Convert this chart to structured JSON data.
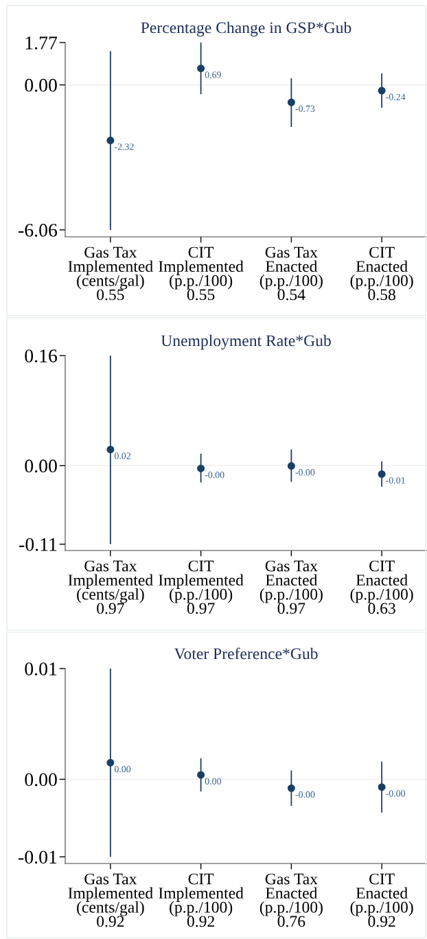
{
  "chart_data": [
    {
      "type": "scatter",
      "title": "Percentage Change in GSP*Gub",
      "categories": [
        "Gas Tax\nImplemented\n(cents/gal)\n0.55",
        "CIT\nImplemented\n(p.p./100)\n0.55",
        "Gas Tax\nEnacted\n(p.p./100)\n0.54",
        "CIT\nEnacted\n(p.p./100)\n0.58"
      ],
      "series": [
        {
          "color": "#1a3f66",
          "values": [
            -2.32,
            0.69,
            -0.73,
            -0.24
          ],
          "errors": [
            [
              -6.06,
              1.41
            ],
            [
              -0.39,
              1.77
            ],
            [
              -1.76,
              0.28
            ],
            [
              -0.96,
              0.48
            ]
          ],
          "value_labels": [
            "-2.32",
            "0.69",
            "-0.73",
            "-0.24"
          ]
        }
      ],
      "ylim": [
        -6.35,
        1.77
      ],
      "yticks": [
        -6.06,
        {
          "value": 0,
          "label": "0.00"
        },
        1.77
      ],
      "ref_lines": [
        {
          "axis": "y",
          "value": 0,
          "color": "#eeeeee"
        }
      ],
      "marker": "circle",
      "grid": false,
      "legend": false
    },
    {
      "type": "scatter",
      "title": "Unemployment Rate*Gub",
      "categories": [
        "Gas Tax\nImplemented\n(cents/gal)\n0.97",
        "CIT\nImplemented\n(p.p./100)\n0.97",
        "Gas Tax\nEnacted\n(p.p./100)\n0.97",
        "CIT\nEnacted\n(p.p./100)\n0.63"
      ],
      "series": [
        {
          "color": "#1a3f66",
          "values": [
            0.023,
            -0.004,
            -0.0004,
            -0.012
          ],
          "errors": [
            [
              -0.112,
              0.157
            ],
            [
              -0.024,
              0.017
            ],
            [
              -0.023,
              0.023
            ],
            [
              -0.03,
              0.006
            ]
          ],
          "value_labels": [
            "0.02",
            "-0.00",
            "-0.00",
            "-0.01"
          ]
        }
      ],
      "ylim": [
        -0.121,
        0.157
      ],
      "yticks": [
        {
          "value": -0.112,
          "label": "-0.11"
        },
        {
          "value": 0,
          "label": "0.00"
        },
        {
          "value": 0.157,
          "label": "0.16"
        }
      ],
      "ref_lines": [
        {
          "axis": "y",
          "value": 0,
          "color": "#eeeeee"
        }
      ],
      "marker": "circle",
      "grid": false,
      "legend": false
    },
    {
      "type": "scatter",
      "title": "Voter Preference*Gub",
      "categories": [
        "Gas Tax\nImplemented\n(cents/gal)\n0.92",
        "CIT\nImplemented\n(p.p./100)\n0.92",
        "Gas Tax\nEnacted\n(p.p./100)\n0.76",
        "CIT\nEnacted\n(p.p./100)\n0.92"
      ],
      "series": [
        {
          "color": "#1a3f66",
          "values": [
            0.0015,
            0.0004,
            -0.0008,
            -0.0007
          ],
          "errors": [
            [
              -0.007,
              0.01
            ],
            [
              -0.0011,
              0.0019
            ],
            [
              -0.0024,
              0.0008
            ],
            [
              -0.003,
              0.0016
            ]
          ],
          "value_labels": [
            "0.00",
            "0.00",
            "-0.00",
            "-0.00"
          ]
        }
      ],
      "ylim": [
        -0.0076,
        0.01
      ],
      "yticks": [
        {
          "value": -0.007,
          "label": "-0.01"
        },
        {
          "value": 0,
          "label": "0.00"
        },
        {
          "value": 0.01,
          "label": "0.01"
        }
      ],
      "ref_lines": [
        {
          "axis": "y",
          "value": 0,
          "color": "#eeeeee"
        }
      ],
      "marker": "circle",
      "grid": false,
      "legend": false
    }
  ]
}
